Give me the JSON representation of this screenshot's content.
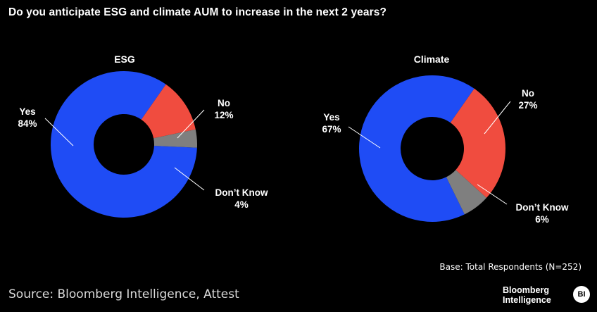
{
  "title": "Do you anticipate ESG and climate AUM to increase in the next 2 years?",
  "chart_data": [
    {
      "type": "pie",
      "donut": true,
      "title": "ESG",
      "categories": [
        "Yes",
        "No",
        "Don't Know"
      ],
      "values": [
        84,
        12,
        4
      ],
      "value_labels": [
        "84%",
        "12%",
        "4%"
      ],
      "colors": [
        "#1f4cf5",
        "#f04c3f",
        "#7f7f7f"
      ]
    },
    {
      "type": "pie",
      "donut": true,
      "title": "Climate",
      "categories": [
        "Yes",
        "No",
        "Don't Know"
      ],
      "values": [
        67,
        27,
        6
      ],
      "value_labels": [
        "67%",
        "27%",
        "6%"
      ],
      "colors": [
        "#1f4cf5",
        "#f04c3f",
        "#7f7f7f"
      ]
    }
  ],
  "labels": {
    "esg": {
      "yes": "Yes",
      "yes_pct": "84%",
      "no": "No",
      "no_pct": "12%",
      "dk": "Don’t Know",
      "dk_pct": "4%"
    },
    "climate": {
      "yes": "Yes",
      "yes_pct": "67%",
      "no": "No",
      "no_pct": "27%",
      "dk": "Don’t Know",
      "dk_pct": "6%"
    }
  },
  "base_note": "Base: Total Respondents (N=252)",
  "source": "Source: Bloomberg Intelligence, Attest",
  "logo": {
    "line1": "Bloomberg",
    "line2": "Intelligence",
    "badge": "BI"
  }
}
